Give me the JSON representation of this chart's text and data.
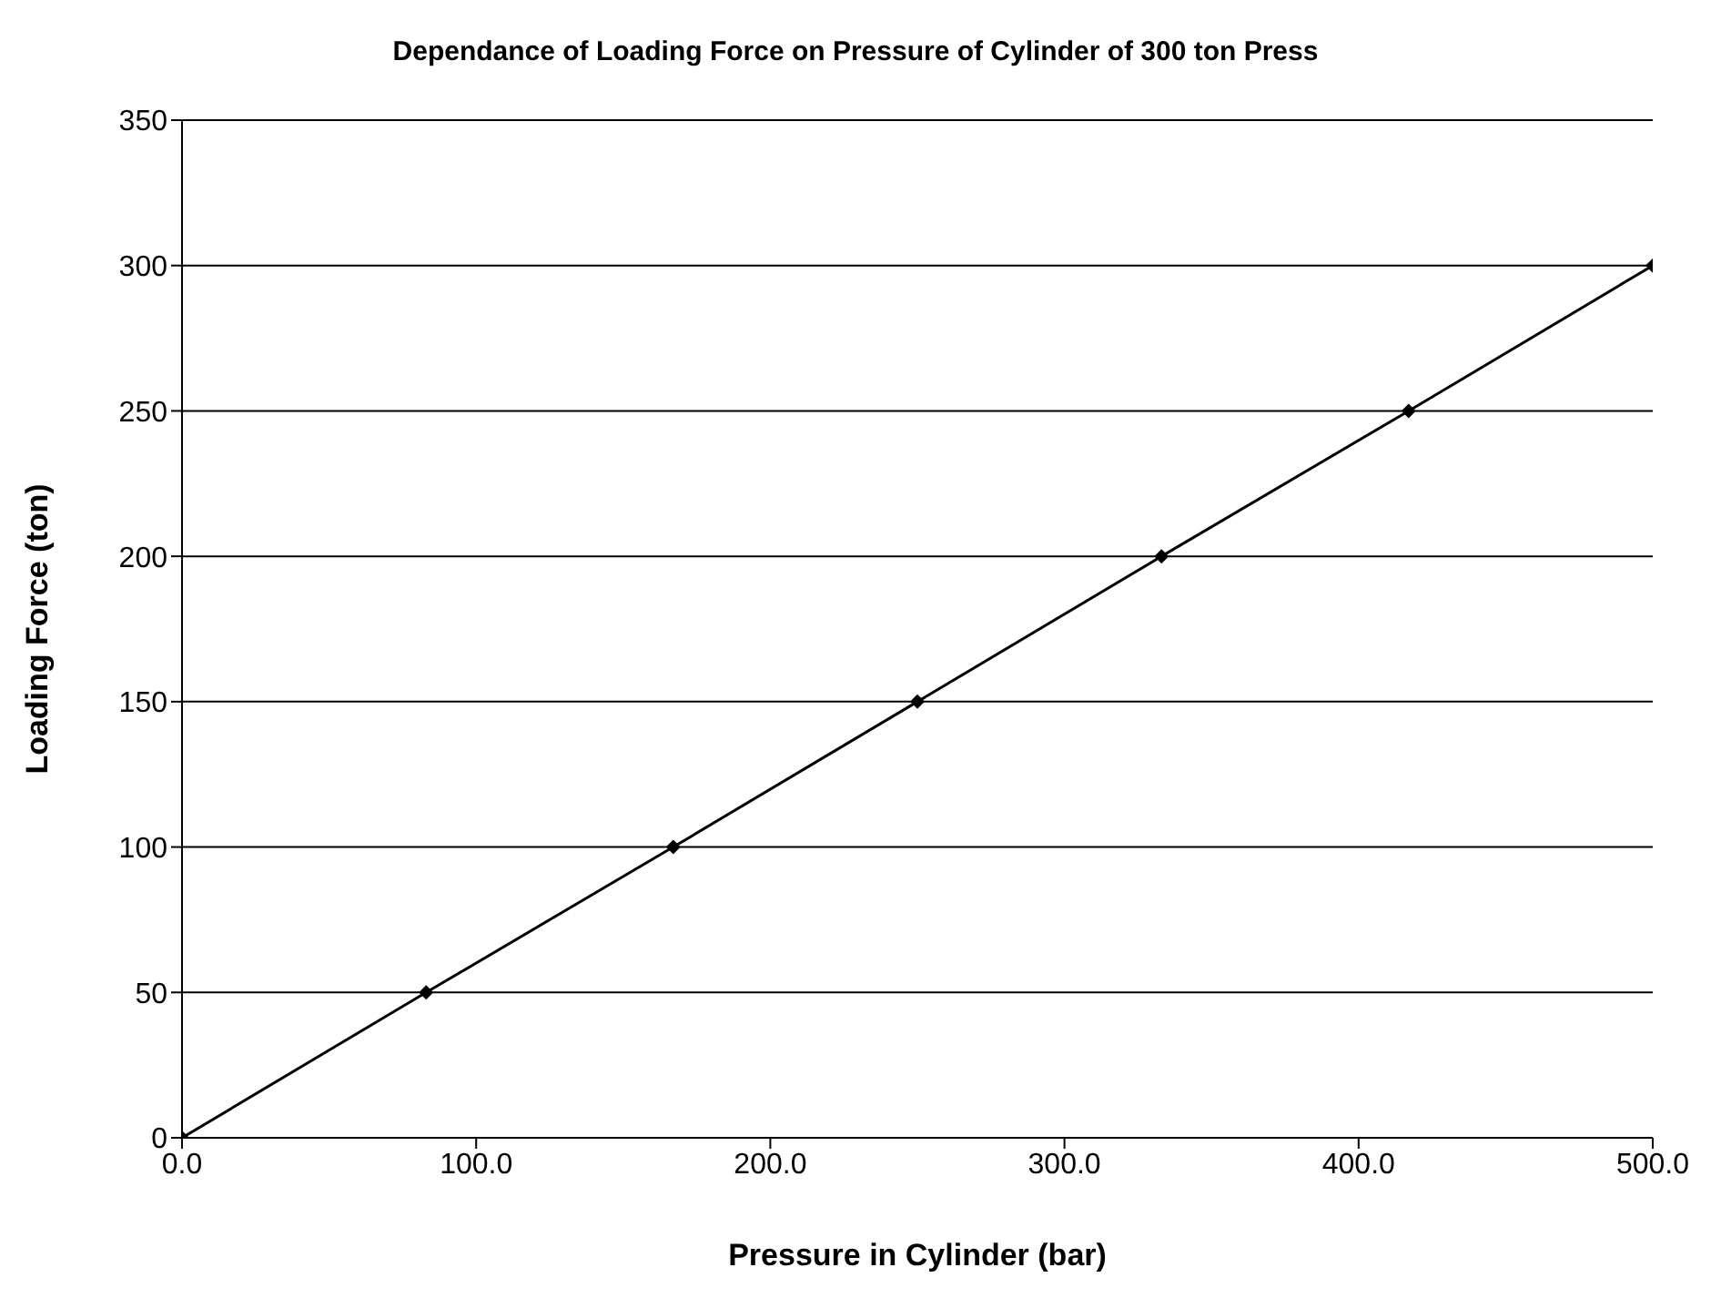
{
  "chart_data": {
    "type": "line",
    "title": "Dependance of Loading Force on Pressure of Cylinder of 300 ton Press",
    "xlabel": "Pressure in Cylinder (bar)",
    "ylabel": "Loading Force (ton)",
    "x": [
      0,
      83,
      167,
      250,
      333,
      417,
      500
    ],
    "series": [
      {
        "color": "#000000",
        "values": [
          0,
          50,
          100,
          150,
          200,
          250,
          300
        ]
      }
    ],
    "xlim": [
      0,
      500
    ],
    "xticks": [
      {
        "value": 0,
        "label": "0.0"
      },
      {
        "value": 100,
        "label": "100.0"
      },
      {
        "value": 200,
        "label": "200.0"
      },
      {
        "value": 300,
        "label": "300.0"
      },
      {
        "value": 400,
        "label": "400.0"
      },
      {
        "value": 500,
        "label": "500.0"
      }
    ],
    "ylim": [
      0,
      350
    ],
    "yticks": [
      0,
      50,
      100,
      150,
      200,
      250,
      300,
      350
    ],
    "grid": "y",
    "marker": "diamond",
    "line_style": "solid",
    "legend": false
  }
}
